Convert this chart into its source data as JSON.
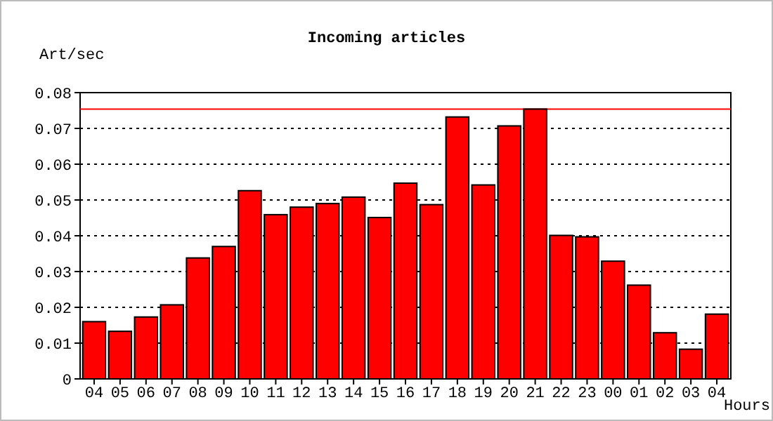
{
  "chart_data": {
    "type": "bar",
    "title": "Incoming articles",
    "ylabel": "Art/sec",
    "xlabel": "Hours",
    "categories": [
      "04",
      "05",
      "06",
      "07",
      "08",
      "09",
      "10",
      "11",
      "12",
      "13",
      "14",
      "15",
      "16",
      "17",
      "18",
      "19",
      "20",
      "21",
      "22",
      "23",
      "00",
      "01",
      "02",
      "03",
      "04"
    ],
    "values": [
      0.016,
      0.0133,
      0.0173,
      0.0207,
      0.0338,
      0.037,
      0.0526,
      0.0459,
      0.048,
      0.049,
      0.0508,
      0.0451,
      0.0547,
      0.0487,
      0.0732,
      0.0542,
      0.0707,
      0.0754,
      0.0401,
      0.0397,
      0.0329,
      0.0262,
      0.0129,
      0.0083,
      0.0181
    ],
    "color": "#ff0000",
    "ylim": [
      0,
      0.08
    ],
    "yticks": [
      {
        "value": 0,
        "label": "0"
      },
      {
        "value": 0.01,
        "label": "0.01"
      },
      {
        "value": 0.02,
        "label": "0.02"
      },
      {
        "value": 0.03,
        "label": "0.03"
      },
      {
        "value": 0.04,
        "label": "0.04"
      },
      {
        "value": 0.05,
        "label": "0.05"
      },
      {
        "value": 0.06,
        "label": "0.06"
      },
      {
        "value": 0.07,
        "label": "0.07"
      },
      {
        "value": 0.08,
        "label": "0.08"
      }
    ],
    "grid": "y",
    "ref_lines": [
      {
        "axis": "y",
        "value": 0.0754,
        "color": "#ff0000",
        "line_style": "solid"
      }
    ]
  }
}
